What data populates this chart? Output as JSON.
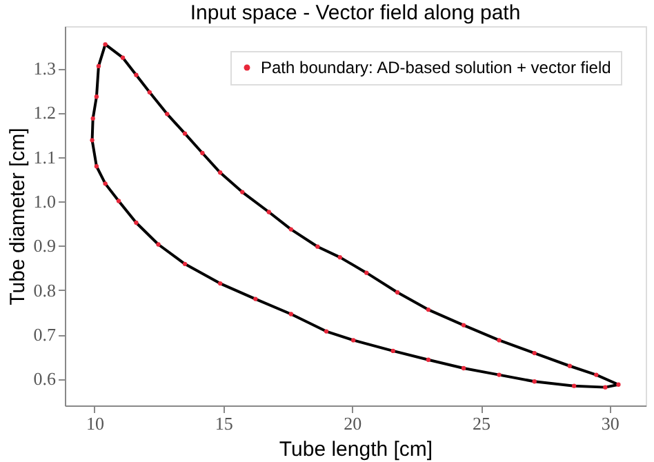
{
  "chart_data": {
    "type": "scatter",
    "title": "Input space - Vector field along path",
    "xlabel": "Tube length [cm]",
    "ylabel": "Tube diameter [cm]",
    "x": [
      30.34,
      29.48,
      28.45,
      27.08,
      25.71,
      24.33,
      22.96,
      21.76,
      20.56,
      19.53,
      18.66,
      17.63,
      16.77,
      15.74,
      14.88,
      14.19,
      13.51,
      12.82,
      12.14,
      11.62,
      11.1,
      10.42,
      10.16,
      10.08,
      9.94,
      9.91,
      10.08,
      10.42,
      10.94,
      11.62,
      12.48,
      13.51,
      14.88,
      16.25,
      17.63,
      19.0,
      20.05,
      21.59,
      22.96,
      24.33,
      25.71,
      27.08,
      28.62,
      29.83
    ],
    "series": [
      {
        "type": "line",
        "color": "#000000",
        "marker": "none",
        "x": [
          30.34,
          29.48,
          28.45,
          27.08,
          25.71,
          24.33,
          22.96,
          21.76,
          20.56,
          19.53,
          18.66,
          17.63,
          16.77,
          15.74,
          14.88,
          14.19,
          13.51,
          12.82,
          12.14,
          11.62,
          11.1,
          10.42
        ],
        "values": [
          0.587,
          0.609,
          0.629,
          0.658,
          0.687,
          0.721,
          0.756,
          0.795,
          0.839,
          0.874,
          0.898,
          0.937,
          0.976,
          1.021,
          1.065,
          1.109,
          1.153,
          1.197,
          1.246,
          1.285,
          1.324,
          1.354
        ]
      },
      {
        "type": "line",
        "color": "#000000",
        "marker": "none",
        "x": [
          10.42,
          10.16,
          10.08,
          9.94,
          9.91,
          10.08,
          10.42
        ],
        "values": [
          1.354,
          1.305,
          1.236,
          1.187,
          1.138,
          1.079,
          1.04
        ]
      },
      {
        "type": "line",
        "color": "#000000",
        "marker": "none",
        "x": [
          10.42,
          10.94,
          11.62,
          12.48,
          13.51,
          14.88,
          16.25,
          17.63,
          19.0,
          20.05,
          21.59,
          22.96,
          24.33,
          25.71,
          27.08,
          28.62,
          29.83,
          30.34
        ],
        "values": [
          1.04,
          1.001,
          0.952,
          0.903,
          0.859,
          0.815,
          0.78,
          0.746,
          0.707,
          0.687,
          0.663,
          0.643,
          0.624,
          0.609,
          0.594,
          0.584,
          0.581,
          0.587
        ]
      },
      {
        "name": "Path boundary: AD-based solution + vector field",
        "color": "#e8273a",
        "values": [
          0.587,
          0.609,
          0.629,
          0.658,
          0.687,
          0.721,
          0.756,
          0.795,
          0.839,
          0.874,
          0.898,
          0.937,
          0.976,
          1.021,
          1.065,
          1.109,
          1.153,
          1.197,
          1.246,
          1.285,
          1.324,
          1.354,
          1.305,
          1.236,
          1.187,
          1.138,
          1.079,
          1.04,
          1.001,
          0.952,
          0.903,
          0.859,
          0.815,
          0.78,
          0.746,
          0.707,
          0.687,
          0.663,
          0.643,
          0.624,
          0.609,
          0.594,
          0.584,
          0.581
        ]
      }
    ],
    "xlim": [
      8.85,
      31.4
    ],
    "ylim": [
      0.54,
      1.395
    ],
    "xticks": [
      10,
      15,
      20,
      25,
      30
    ],
    "yticks": [
      0.6,
      0.7,
      0.8,
      0.9,
      {
        "value": 1,
        "label": "1.0"
      },
      1.1,
      1.2,
      1.3
    ],
    "grid": false,
    "legend": "top right",
    "marker": "circle",
    "line_style": "solid"
  }
}
